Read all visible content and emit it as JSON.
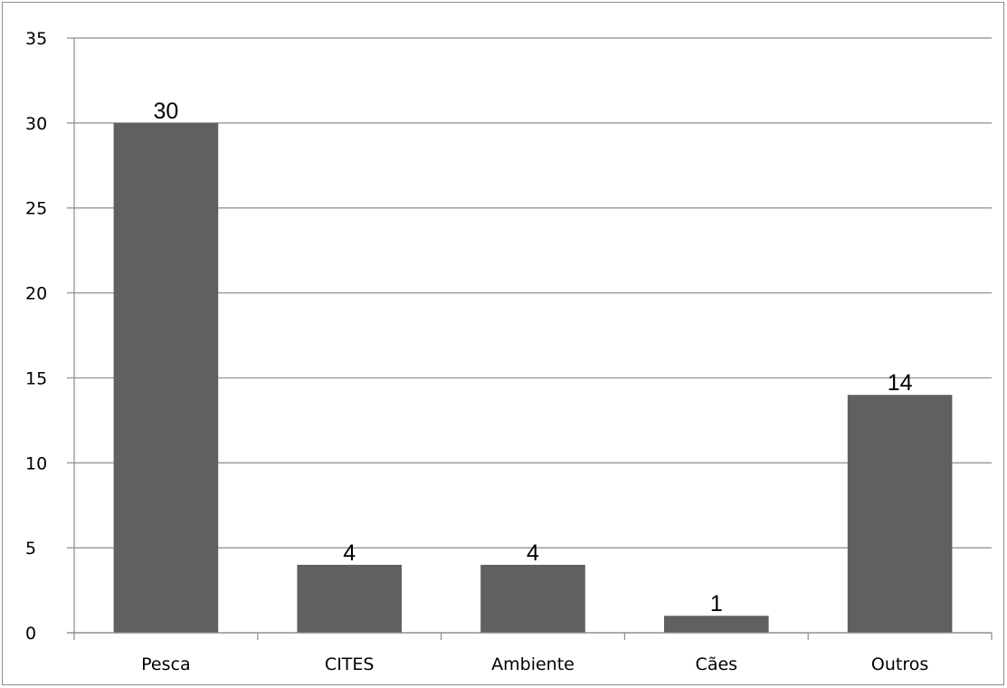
{
  "chart_data": {
    "type": "bar",
    "title": "",
    "xlabel": "",
    "ylabel": "",
    "categories": [
      "Pesca",
      "CITES",
      "Ambiente",
      "Cães",
      "Outros"
    ],
    "values": [
      30,
      4,
      4,
      1,
      14
    ],
    "data_labels": [
      "30",
      "4",
      "4",
      "1",
      "14"
    ],
    "ylim": [
      0,
      35
    ],
    "yticks": [
      "0",
      "5",
      "10",
      "15",
      "20",
      "25",
      "30",
      "35"
    ],
    "grid": true,
    "legend": "none",
    "bar_color": "#606060",
    "grid_color": "#8c8c8c"
  }
}
